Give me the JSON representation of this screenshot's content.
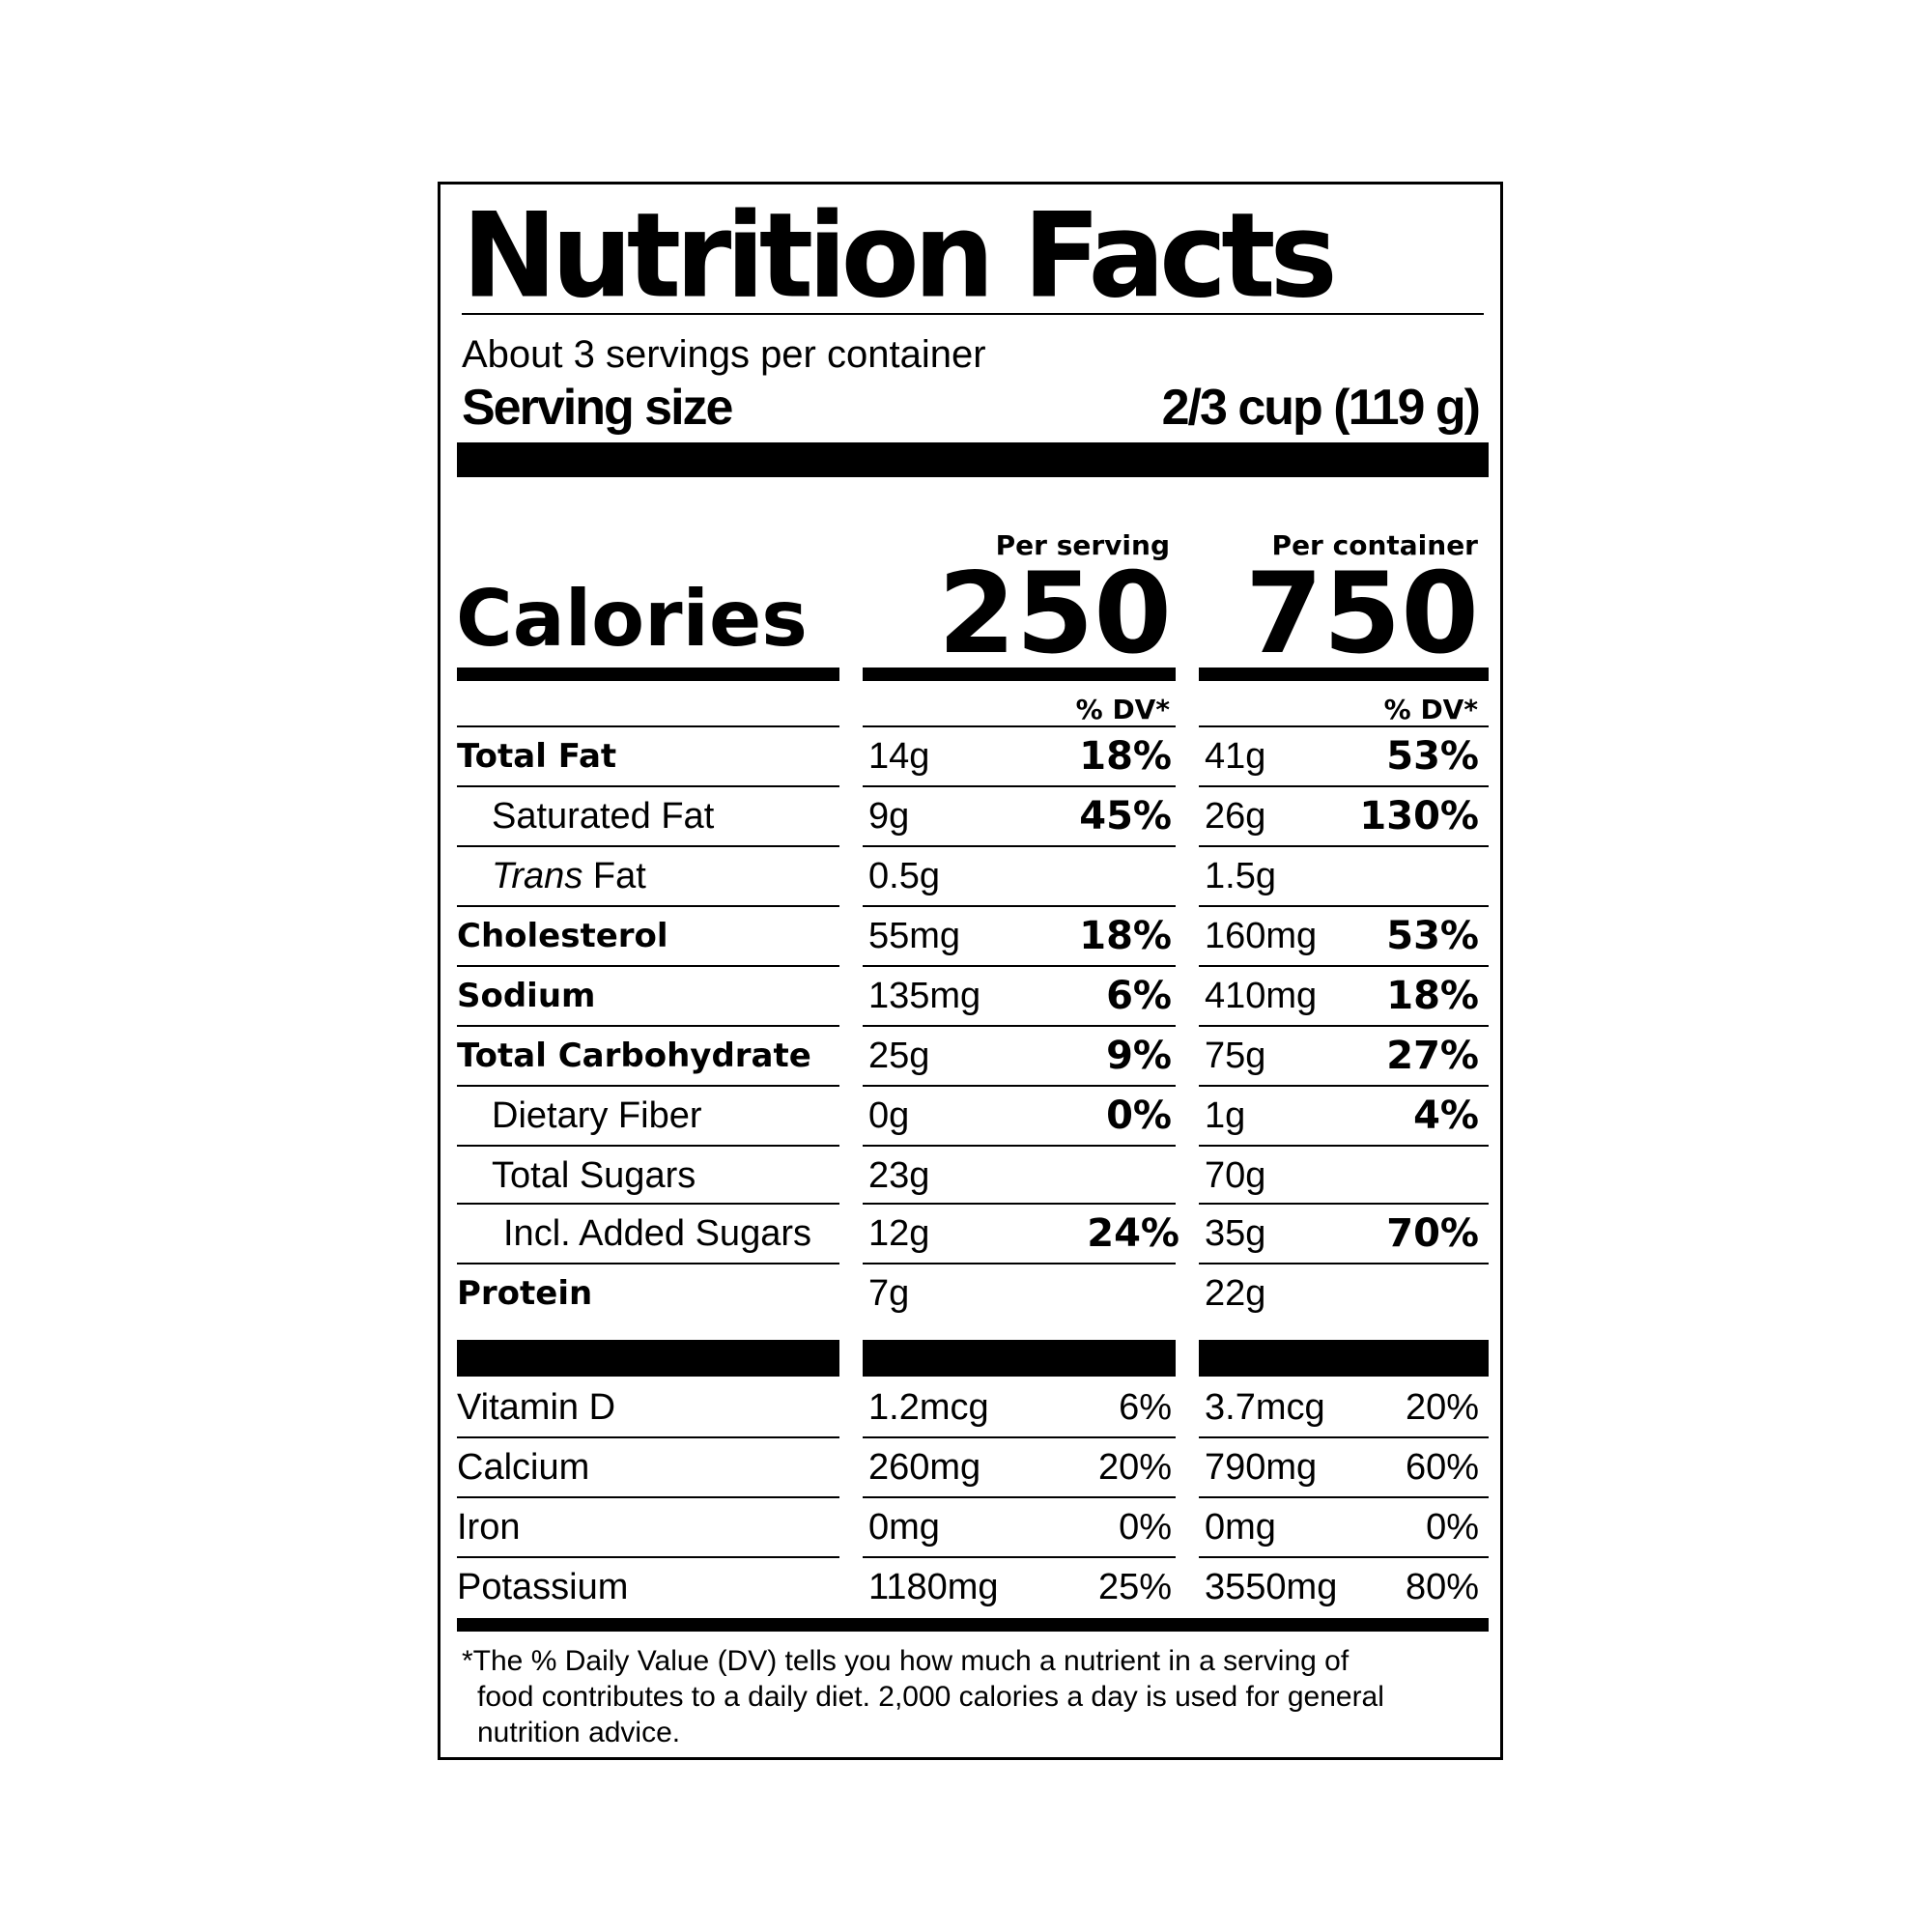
{
  "title": "Nutrition Facts",
  "servings_per_container": "About 3 servings per container",
  "serving_size_label": "Serving size",
  "serving_size_value": "2/3 cup (119 g)",
  "columns": {
    "per_serving_label": "Per serving",
    "per_container_label": "Per container",
    "dv_label": "% DV*"
  },
  "calories": {
    "label": "Calories",
    "per_serving": "250",
    "per_container": "750"
  },
  "nutrients": [
    {
      "prefix": "",
      "name": "Total Fat",
      "serving_amt": "14g",
      "serving_dv": "18%",
      "container_amt": "41g",
      "container_dv": "53%"
    },
    {
      "prefix": "",
      "name": "Saturated Fat",
      "serving_amt": "9g",
      "serving_dv": "45%",
      "container_amt": "26g",
      "container_dv": "130%"
    },
    {
      "prefix": "Trans",
      "name": " Fat",
      "serving_amt": "0.5g",
      "serving_dv": "",
      "container_amt": "1.5g",
      "container_dv": ""
    },
    {
      "prefix": "",
      "name": "Cholesterol",
      "serving_amt": "55mg",
      "serving_dv": "18%",
      "container_amt": "160mg",
      "container_dv": "53%"
    },
    {
      "prefix": "",
      "name": "Sodium",
      "serving_amt": "135mg",
      "serving_dv": "6%",
      "container_amt": "410mg",
      "container_dv": "18%"
    },
    {
      "prefix": "",
      "name": "Total Carbohydrate",
      "serving_amt": "25g",
      "serving_dv": "9%",
      "container_amt": "75g",
      "container_dv": "27%"
    },
    {
      "prefix": "",
      "name": "Dietary Fiber",
      "serving_amt": "0g",
      "serving_dv": "0%",
      "container_amt": "1g",
      "container_dv": "4%"
    },
    {
      "prefix": "",
      "name": "Total Sugars",
      "serving_amt": "23g",
      "serving_dv": "",
      "container_amt": "70g",
      "container_dv": ""
    },
    {
      "prefix": "",
      "name": "Incl. Added Sugars",
      "serving_amt": "12g",
      "serving_dv": "24%",
      "container_amt": "35g",
      "container_dv": "70%"
    },
    {
      "prefix": "",
      "name": "Protein",
      "serving_amt": "7g",
      "serving_dv": "",
      "container_amt": "22g",
      "container_dv": ""
    }
  ],
  "vitamins": [
    {
      "name": "Vitamin D",
      "serving_amt": "1.2mcg",
      "serving_dv": "6%",
      "container_amt": "3.7mcg",
      "container_dv": "20%"
    },
    {
      "name": "Calcium",
      "serving_amt": "260mg",
      "serving_dv": "20%",
      "container_amt": "790mg",
      "container_dv": "60%"
    },
    {
      "name": "Iron",
      "serving_amt": "0mg",
      "serving_dv": "0%",
      "container_amt": "0mg",
      "container_dv": "0%"
    },
    {
      "name": "Potassium",
      "serving_amt": "1180mg",
      "serving_dv": "25%",
      "container_amt": "3550mg",
      "container_dv": "80%"
    }
  ],
  "footnote": {
    "line1": "*The % Daily Value (DV) tells you how much a nutrient in a serving of",
    "line2": "food contributes to a daily diet. 2,000 calories a day is used for general",
    "line3": "nutrition advice."
  }
}
